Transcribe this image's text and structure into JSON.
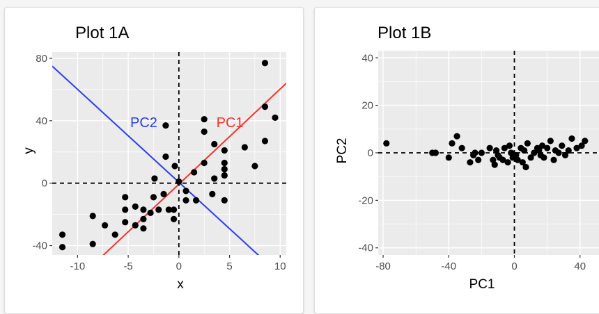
{
  "chart_data": [
    {
      "type": "scatter",
      "title": "Plot 1A",
      "xlabel": "x",
      "ylabel": "y",
      "xlim": [
        -12.5,
        10.6
      ],
      "ylim": [
        -46,
        84
      ],
      "xticks": [
        -10,
        -5,
        0,
        5,
        10
      ],
      "yticks": [
        -40,
        0,
        40,
        80
      ],
      "xtick_labels": [
        "-10",
        "-5",
        "0",
        "5",
        "10"
      ],
      "ytick_labels": [
        "-40",
        "0",
        "40",
        "80"
      ],
      "grid": true,
      "reference_lines": {
        "x": 0,
        "y": 0,
        "style": "dashed"
      },
      "lines": [
        {
          "name": "PC1",
          "color": "#f8312a",
          "points": [
            [
              -7.6,
              -47
            ],
            [
              10.6,
              64
            ]
          ],
          "label_at": [
            3.7,
            39
          ]
        },
        {
          "name": "PC2",
          "color": "#2a3cf5",
          "points": [
            [
              -12.5,
              75
            ],
            [
              8.0,
              -47
            ]
          ],
          "label_at": [
            -4.8,
            39
          ]
        }
      ],
      "points": [
        [
          -11.5,
          -33
        ],
        [
          -11.5,
          -41
        ],
        [
          -8.5,
          -21
        ],
        [
          -8.5,
          -39
        ],
        [
          -7.3,
          -27
        ],
        [
          -6.3,
          -33
        ],
        [
          -5.3,
          -9
        ],
        [
          -5.3,
          -17
        ],
        [
          -5.3,
          -25
        ],
        [
          -4.3,
          -15
        ],
        [
          -4.3,
          -27
        ],
        [
          -3.5,
          -17
        ],
        [
          -3.5,
          -23
        ],
        [
          -3.5,
          -29
        ],
        [
          -2.8,
          -19
        ],
        [
          -2.5,
          -9
        ],
        [
          -2.4,
          3
        ],
        [
          -2.0,
          -17
        ],
        [
          -1.5,
          -7
        ],
        [
          -1.3,
          37
        ],
        [
          -1.3,
          17
        ],
        [
          -1.0,
          -17
        ],
        [
          -0.5,
          -23
        ],
        [
          -0.5,
          -17
        ],
        [
          -0.4,
          11
        ],
        [
          0.0,
          1
        ],
        [
          0.7,
          -11
        ],
        [
          0.7,
          -5
        ],
        [
          1.5,
          7
        ],
        [
          1.7,
          -11
        ],
        [
          2.5,
          41
        ],
        [
          2.5,
          33
        ],
        [
          2.5,
          13
        ],
        [
          3.3,
          -7
        ],
        [
          3.5,
          25
        ],
        [
          3.5,
          3
        ],
        [
          4.5,
          21
        ],
        [
          4.5,
          13
        ],
        [
          4.5,
          9
        ],
        [
          4.5,
          5
        ],
        [
          4.5,
          -11
        ],
        [
          6.5,
          23
        ],
        [
          7.5,
          11
        ],
        [
          8.5,
          77
        ],
        [
          8.5,
          49
        ],
        [
          8.5,
          27
        ],
        [
          9.5,
          42
        ]
      ]
    },
    {
      "type": "scatter",
      "title": "Plot 1B",
      "xlabel": "PC1",
      "ylabel": "PC2",
      "xlim": [
        -83,
        52
      ],
      "ylim": [
        -43,
        43
      ],
      "xticks": [
        -80,
        -40,
        0,
        40
      ],
      "yticks": [
        -40,
        -20,
        0,
        20,
        40
      ],
      "xtick_labels": [
        "-80",
        "-40",
        "0",
        "40"
      ],
      "ytick_labels": [
        "-40",
        "-20",
        "0",
        "20",
        "40"
      ],
      "grid": true,
      "reference_lines": {
        "x": 0,
        "y": 0,
        "style": "dashed"
      },
      "points": [
        [
          -78,
          4
        ],
        [
          -50,
          0
        ],
        [
          -48,
          0
        ],
        [
          -40,
          -2
        ],
        [
          -38,
          4
        ],
        [
          -35,
          7
        ],
        [
          -32,
          2
        ],
        [
          -27,
          -4
        ],
        [
          -25,
          -1
        ],
        [
          -24,
          0
        ],
        [
          -22,
          -3
        ],
        [
          -20,
          0
        ],
        [
          -15,
          2
        ],
        [
          -13,
          -3
        ],
        [
          -12,
          -5
        ],
        [
          -11,
          1
        ],
        [
          -10,
          -1
        ],
        [
          -9,
          -2
        ],
        [
          -7,
          -3
        ],
        [
          -6,
          2
        ],
        [
          -4,
          -4
        ],
        [
          -3,
          3
        ],
        [
          -2,
          0
        ],
        [
          -1,
          -2
        ],
        [
          1,
          -1
        ],
        [
          2,
          -3
        ],
        [
          4,
          2
        ],
        [
          5,
          -4
        ],
        [
          6,
          1
        ],
        [
          7,
          -6
        ],
        [
          8,
          4
        ],
        [
          10,
          -2
        ],
        [
          12,
          0
        ],
        [
          14,
          2
        ],
        [
          15,
          1
        ],
        [
          16,
          -1
        ],
        [
          17,
          3
        ],
        [
          18,
          -2
        ],
        [
          20,
          2
        ],
        [
          22,
          5
        ],
        [
          24,
          -3
        ],
        [
          25,
          1
        ],
        [
          27,
          0
        ],
        [
          29,
          3
        ],
        [
          31,
          -1
        ],
        [
          33,
          1
        ],
        [
          35,
          6
        ],
        [
          38,
          2
        ],
        [
          41,
          3
        ],
        [
          43,
          5
        ]
      ]
    }
  ],
  "colors": {
    "panel": "#ebebeb",
    "grid": "#ffffff",
    "point": "#000000",
    "tick_text": "#4d4d4d"
  }
}
